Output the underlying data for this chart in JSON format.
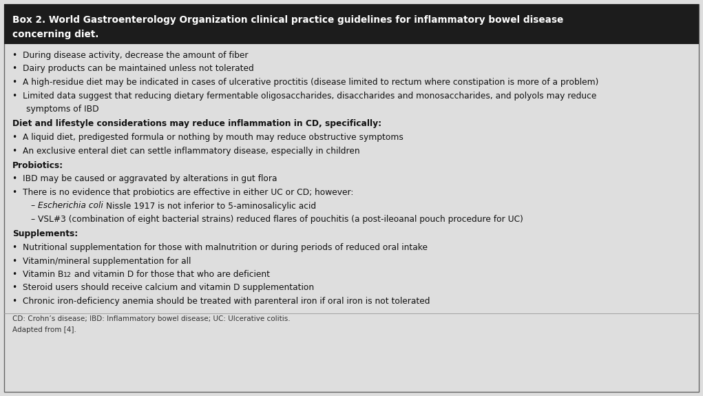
{
  "title_line1": "Box 2. World Gastroenterology Organization clinical practice guidelines for inflammatory bowel disease",
  "title_line2": "concerning diet.",
  "title_bg": "#1c1c1c",
  "title_fg": "#ffffff",
  "body_bg": "#dedede",
  "border_color": "#666666",
  "body_text_color": "#111111",
  "footer_color": "#333333",
  "footer_line1": "CD: Crohn’s disease; IBD: Inflammatory bowel disease; UC: Ulcerative colitis.",
  "footer_line2": "Adapted from [4].",
  "bullet": "•",
  "dash": "–",
  "font_size_body": 8.8,
  "font_size_title": 9.8,
  "font_size_footer": 7.5,
  "fig_width": 10.21,
  "fig_height": 5.75,
  "dpi": 100
}
